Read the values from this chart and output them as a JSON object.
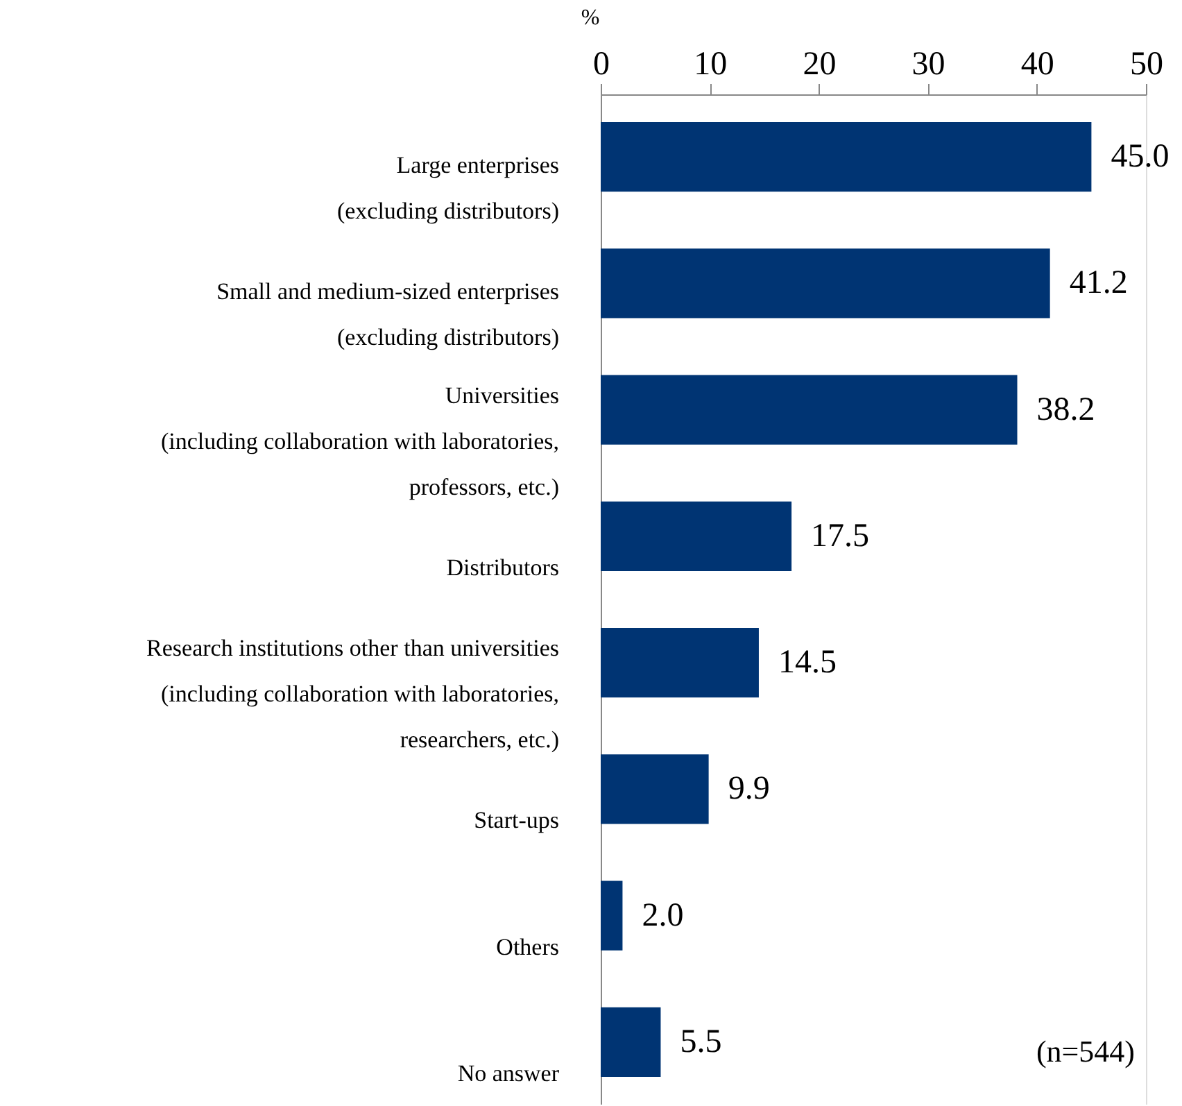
{
  "chart_data": {
    "type": "bar",
    "orientation": "horizontal",
    "xlabel": "%",
    "categories": [
      "Large enterprises\n(excluding distributors)",
      "Small and medium-sized enterprises\n(excluding distributors)",
      "Universities\n(including collaboration with laboratories,\nprofessors, etc.)",
      "Distributors",
      "Research institutions other than universities\n(including collaboration with laboratories,\nresearchers, etc.)",
      "Start-ups",
      "Others",
      "No answer"
    ],
    "values": [
      45.0,
      41.2,
      38.2,
      17.5,
      14.5,
      9.9,
      2.0,
      5.5
    ],
    "color": "#003473",
    "xlim": [
      0,
      50
    ],
    "xticks": [
      0,
      10,
      20,
      30,
      40,
      50
    ],
    "value_labels": [
      "45.0",
      "41.2",
      "38.2",
      "17.5",
      "14.5",
      "9.9",
      "2.0",
      "5.5"
    ],
    "grid": false,
    "annotations": [
      "(n=544)"
    ]
  }
}
